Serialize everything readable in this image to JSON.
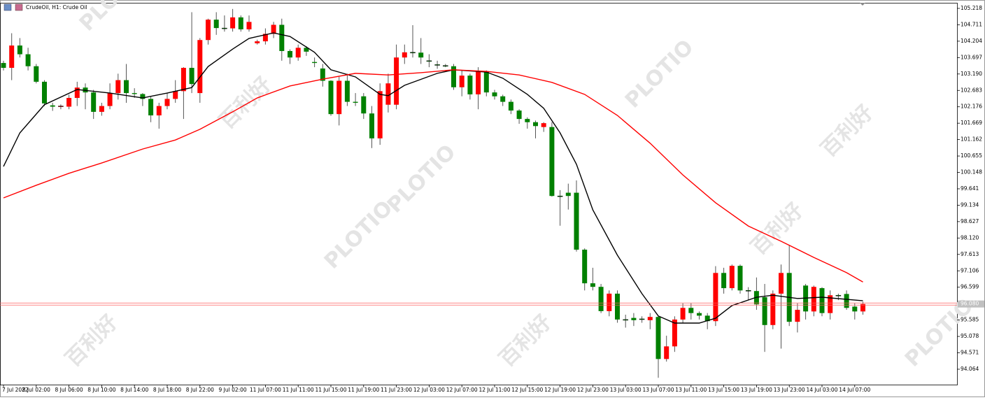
{
  "chart_data": {
    "type": "candlestick",
    "title": "CrudeOil, H1: Crude Oil",
    "categories": [
      "7 Jul 2022",
      null,
      null,
      null,
      "8 Jul 02:00",
      null,
      null,
      null,
      "8 Jul 06:00",
      null,
      null,
      null,
      "8 Jul 10:00",
      null,
      null,
      null,
      "8 Jul 14:00",
      null,
      null,
      null,
      "8 Jul 18:00",
      null,
      null,
      null,
      "8 Jul 22:00",
      null,
      null,
      null,
      "9 Jul 02:00",
      null,
      null,
      null,
      "11 Jul 07:00",
      null,
      null,
      null,
      "11 Jul 11:00",
      null,
      null,
      null,
      "11 Jul 15:00",
      null,
      null,
      null,
      "11 Jul 19:00",
      null,
      null,
      null,
      "11 Jul 23:00",
      null,
      null,
      null,
      "12 Jul 03:00",
      null,
      null,
      null,
      "12 Jul 07:00",
      null,
      null,
      null,
      "12 Jul 11:00",
      null,
      null,
      null,
      "12 Jul 15:00",
      null,
      null,
      null,
      "12 Jul 19:00",
      null,
      null,
      null,
      "12 Jul 23:00",
      null,
      null,
      null,
      "13 Jul 03:00",
      null,
      null,
      null,
      "13 Jul 07:00",
      null,
      null,
      null,
      "13 Jul 11:00",
      null,
      null,
      null,
      "13 Jul 15:00",
      null,
      null,
      null,
      "13 Jul 19:00",
      null,
      null,
      null,
      "13 Jul 23:00",
      null,
      null,
      null,
      "14 Jul 03:00",
      null,
      null,
      null,
      "14 Jul 07:00",
      null
    ],
    "open": [
      103.53,
      103.38,
      104.07,
      103.8,
      103.43,
      102.95,
      102.22,
      102.18,
      102.18,
      102.45,
      102.77,
      102.62,
      102.02,
      102.2,
      102.6,
      103.0,
      102.6,
      102.57,
      102.42,
      101.91,
      102.2,
      102.42,
      102.66,
      103.38,
      102.6,
      104.24,
      104.87,
      104.61,
      104.6,
      104.94,
      104.57,
      104.14,
      104.2,
      104.43,
      104.71,
      103.9,
      103.7,
      104.0,
      103.56,
      103.36,
      102.98,
      101.95,
      102.98,
      102.33,
      102.5,
      101.97,
      101.2,
      102.24,
      102.24,
      103.7,
      103.86,
      103.85,
      103.6,
      103.48,
      103.45,
      103.43,
      102.78,
      103.14,
      102.56,
      103.27,
      102.62,
      102.5,
      102.33,
      102.06,
      101.8,
      101.7,
      101.55,
      101.55,
      99.42,
      99.52,
      99.52,
      97.76,
      96.72,
      96.61,
      95.86,
      96.4,
      95.6,
      95.65,
      95.62,
      95.58,
      95.68,
      94.38,
      94.77,
      95.6,
      95.96,
      95.8,
      95.72,
      95.55,
      97.04,
      96.57,
      97.26,
      96.5,
      96.48,
      96.29,
      95.43,
      96.4,
      97.04,
      95.53,
      96.65,
      95.85,
      96.57,
      95.8,
      96.35,
      96.39,
      96.0,
      95.85
    ],
    "high": [
      103.6,
      104.45,
      104.3,
      104.0,
      103.5,
      103.0,
      102.3,
      102.25,
      102.55,
      102.95,
      102.9,
      102.7,
      102.3,
      102.9,
      103.2,
      103.5,
      102.75,
      102.6,
      102.5,
      102.3,
      102.6,
      103.0,
      103.4,
      105.1,
      104.3,
      104.9,
      105.1,
      105.0,
      105.2,
      105.0,
      105.0,
      104.25,
      104.6,
      104.8,
      104.9,
      103.95,
      104.1,
      104.05,
      103.7,
      103.5,
      103.0,
      103.1,
      103.2,
      102.6,
      102.6,
      102.2,
      102.9,
      103.2,
      104.1,
      104.1,
      104.7,
      104.3,
      103.8,
      103.6,
      103.5,
      103.5,
      103.3,
      103.2,
      103.4,
      103.3,
      102.7,
      102.55,
      102.4,
      102.1,
      101.85,
      101.75,
      101.7,
      101.7,
      99.6,
      99.8,
      99.9,
      97.8,
      97.2,
      96.7,
      96.5,
      96.5,
      95.75,
      95.8,
      95.7,
      95.8,
      95.7,
      95.1,
      95.7,
      96.1,
      96.1,
      95.85,
      95.8,
      97.25,
      97.2,
      97.3,
      97.3,
      96.6,
      96.9,
      96.7,
      96.5,
      97.3,
      97.9,
      96.1,
      96.7,
      96.65,
      96.6,
      96.5,
      96.4,
      96.5,
      96.1,
      96.15
    ],
    "low": [
      103.3,
      103.0,
      103.7,
      103.3,
      102.9,
      102.2,
      102.05,
      102.1,
      102.1,
      102.2,
      102.1,
      101.8,
      101.9,
      102.1,
      102.4,
      102.3,
      102.45,
      102.2,
      101.7,
      101.5,
      102.1,
      102.3,
      101.8,
      102.6,
      102.3,
      104.1,
      104.4,
      104.5,
      104.5,
      104.5,
      104.5,
      104.1,
      104.1,
      104.3,
      103.6,
      103.5,
      103.6,
      103.75,
      103.4,
      102.8,
      101.9,
      101.6,
      102.2,
      102.2,
      101.8,
      100.9,
      101.0,
      102.0,
      102.1,
      103.5,
      103.7,
      103.5,
      103.4,
      103.35,
      103.4,
      102.7,
      102.5,
      102.4,
      102.1,
      102.5,
      102.4,
      102.2,
      101.95,
      101.65,
      101.5,
      101.2,
      101.4,
      99.4,
      98.5,
      99.0,
      97.7,
      96.5,
      96.5,
      95.8,
      95.7,
      95.5,
      95.35,
      95.4,
      95.5,
      95.3,
      93.8,
      94.3,
      94.6,
      95.5,
      95.6,
      95.6,
      95.3,
      95.4,
      96.4,
      96.5,
      96.4,
      96.2,
      95.9,
      94.6,
      95.3,
      94.7,
      95.4,
      95.2,
      95.6,
      95.7,
      95.7,
      95.6,
      96.2,
      95.9,
      95.6,
      95.75
    ],
    "close": [
      103.38,
      104.07,
      103.8,
      103.43,
      102.95,
      102.28,
      102.18,
      102.2,
      102.45,
      102.77,
      102.62,
      102.02,
      102.2,
      102.6,
      103.0,
      102.6,
      102.57,
      102.42,
      101.91,
      102.2,
      102.42,
      102.66,
      103.38,
      102.88,
      104.24,
      104.87,
      104.61,
      104.6,
      104.94,
      104.57,
      104.8,
      104.2,
      104.43,
      104.71,
      103.9,
      103.7,
      104.0,
      103.88,
      103.53,
      102.98,
      101.95,
      102.98,
      102.33,
      102.3,
      101.97,
      101.2,
      102.66,
      102.9,
      103.7,
      103.86,
      103.85,
      103.7,
      103.58,
      103.46,
      103.43,
      102.78,
      103.14,
      102.56,
      103.27,
      102.62,
      102.5,
      102.33,
      102.06,
      101.8,
      101.7,
      101.58,
      101.67,
      99.42,
      99.4,
      99.42,
      97.76,
      96.72,
      96.61,
      95.86,
      96.4,
      95.6,
      95.58,
      95.58,
      95.61,
      95.68,
      94.38,
      94.77,
      95.6,
      95.96,
      95.8,
      95.72,
      95.55,
      97.04,
      96.57,
      97.26,
      96.5,
      96.48,
      96.07,
      95.43,
      96.4,
      97.04,
      95.53,
      95.9,
      95.85,
      96.61,
      95.8,
      96.35,
      96.34,
      95.96,
      95.85,
      96.08
    ],
    "up_color": "#ff0000",
    "down_color": "#008000",
    "series": [
      {
        "color": "#000000",
        "x": [
          0,
          2,
          5,
          9,
          13,
          17,
          20,
          23,
          25,
          28,
          30,
          33,
          35,
          38,
          40,
          43,
          46,
          47,
          49,
          53,
          55,
          59,
          61,
          64,
          66,
          68,
          70,
          72,
          75,
          78,
          80,
          82,
          85,
          87,
          89,
          92,
          94,
          97,
          100,
          105
        ],
        "values": [
          100.33,
          101.37,
          102.24,
          102.71,
          102.6,
          102.45,
          102.6,
          102.77,
          103.42,
          103.96,
          104.29,
          104.46,
          104.35,
          103.86,
          103.32,
          103.1,
          102.56,
          102.52,
          102.84,
          103.21,
          103.32,
          103.25,
          103.06,
          102.56,
          102.13,
          101.37,
          100.4,
          98.99,
          97.59,
          96.4,
          95.71,
          95.49,
          95.49,
          95.64,
          96.03,
          96.29,
          96.35,
          96.25,
          96.29,
          96.18
        ]
      },
      {
        "color": "#ff0000",
        "x": [
          0,
          4,
          8,
          12,
          17,
          21,
          24,
          28,
          31,
          35,
          39,
          43,
          47,
          51,
          55,
          59,
          63,
          67,
          71,
          75,
          79,
          83,
          87,
          91,
          95,
          99,
          103,
          105
        ],
        "values": [
          99.36,
          99.75,
          100.12,
          100.44,
          100.87,
          101.15,
          101.48,
          102.02,
          102.45,
          102.82,
          103.03,
          103.21,
          103.16,
          103.23,
          103.32,
          103.27,
          103.16,
          102.93,
          102.56,
          101.91,
          101.05,
          100.07,
          99.21,
          98.49,
          98.02,
          97.52,
          97.05,
          96.76
        ]
      }
    ],
    "ylim": [
      93.588,
      105.369
    ],
    "yticks": [
      105.218,
      104.711,
      104.204,
      103.697,
      {
        "value": 103.19,
        "label": "103.190"
      },
      102.683,
      102.176,
      101.669,
      101.162,
      100.655,
      100.148,
      99.641,
      99.134,
      98.627,
      {
        "value": 98.12,
        "label": "98.120"
      },
      97.613,
      97.106,
      96.599,
      95.585,
      95.078,
      94.571,
      94.064
    ],
    "current_price": {
      "value": 96.08,
      "label": "96.080"
    },
    "grid": false
  },
  "watermark": [
    "PLOTIO",
    "百利好"
  ]
}
